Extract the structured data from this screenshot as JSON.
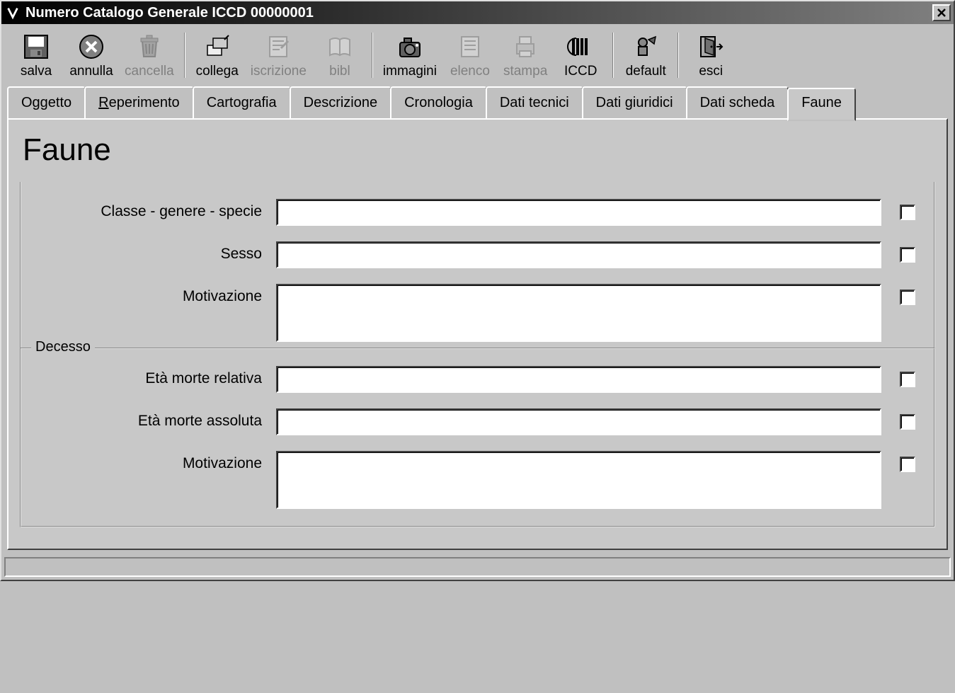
{
  "window": {
    "title": "Numero Catalogo Generale ICCD 00000001"
  },
  "toolbar": {
    "groups": [
      [
        "salva",
        "annulla",
        "cancella"
      ],
      [
        "collega",
        "iscrizione",
        "bibl"
      ],
      [
        "immagini",
        "elenco",
        "stampa",
        "ICCD"
      ],
      [
        "default"
      ],
      [
        "esci"
      ]
    ],
    "buttons": {
      "salva": {
        "label": "salva",
        "icon": "save-icon",
        "enabled": true
      },
      "annulla": {
        "label": "annulla",
        "icon": "cancel-icon",
        "enabled": true
      },
      "cancella": {
        "label": "cancella",
        "icon": "trash-icon",
        "enabled": false
      },
      "collega": {
        "label": "collega",
        "icon": "link-icon",
        "enabled": true
      },
      "iscrizione": {
        "label": "iscrizione",
        "icon": "note-icon",
        "enabled": false
      },
      "bibl": {
        "label": "bibl",
        "icon": "book-icon",
        "enabled": false
      },
      "immagini": {
        "label": "immagini",
        "icon": "camera-icon",
        "enabled": true
      },
      "elenco": {
        "label": "elenco",
        "icon": "list-icon",
        "enabled": false
      },
      "stampa": {
        "label": "stampa",
        "icon": "printer-icon",
        "enabled": false
      },
      "ICCD": {
        "label": "ICCD",
        "icon": "iccd-icon",
        "enabled": true
      },
      "default": {
        "label": "default",
        "icon": "default-icon",
        "enabled": true
      },
      "esci": {
        "label": "esci",
        "icon": "exit-icon",
        "enabled": true
      }
    }
  },
  "tabs": {
    "items": [
      {
        "label": "Oggetto"
      },
      {
        "label": "Reperimento",
        "underline_index": 0
      },
      {
        "label": "Cartografia"
      },
      {
        "label": "Descrizione"
      },
      {
        "label": "Cronologia"
      },
      {
        "label": "Dati tecnici"
      },
      {
        "label": "Dati giuridici"
      },
      {
        "label": "Dati scheda"
      },
      {
        "label": "Faune"
      }
    ],
    "active_index": 8
  },
  "page": {
    "heading": "Faune",
    "top_fields": [
      {
        "key": "classe",
        "label": "Classe - genere - specie",
        "type": "text",
        "value": "",
        "checked": false
      },
      {
        "key": "sesso",
        "label": "Sesso",
        "type": "text",
        "value": "",
        "checked": false
      },
      {
        "key": "motivazione",
        "label": "Motivazione",
        "type": "textarea",
        "value": "",
        "checked": false
      }
    ],
    "decesso": {
      "legend": "Decesso",
      "fields": [
        {
          "key": "eta_rel",
          "label": "Età morte relativa",
          "type": "text",
          "value": "",
          "checked": false
        },
        {
          "key": "eta_abs",
          "label": "Età morte assoluta",
          "type": "text",
          "value": "",
          "checked": false
        },
        {
          "key": "motivazione2",
          "label": "Motivazione",
          "type": "textarea",
          "value": "",
          "checked": false
        }
      ]
    }
  },
  "colors": {
    "face": "#c0c0c0",
    "panel": "#c8c8c8",
    "highlight": "#ffffff",
    "shadow": "#808080",
    "darkshadow": "#404040",
    "title_grad_from": "#000000",
    "title_grad_to": "#808080",
    "disabled_text": "#808080"
  }
}
